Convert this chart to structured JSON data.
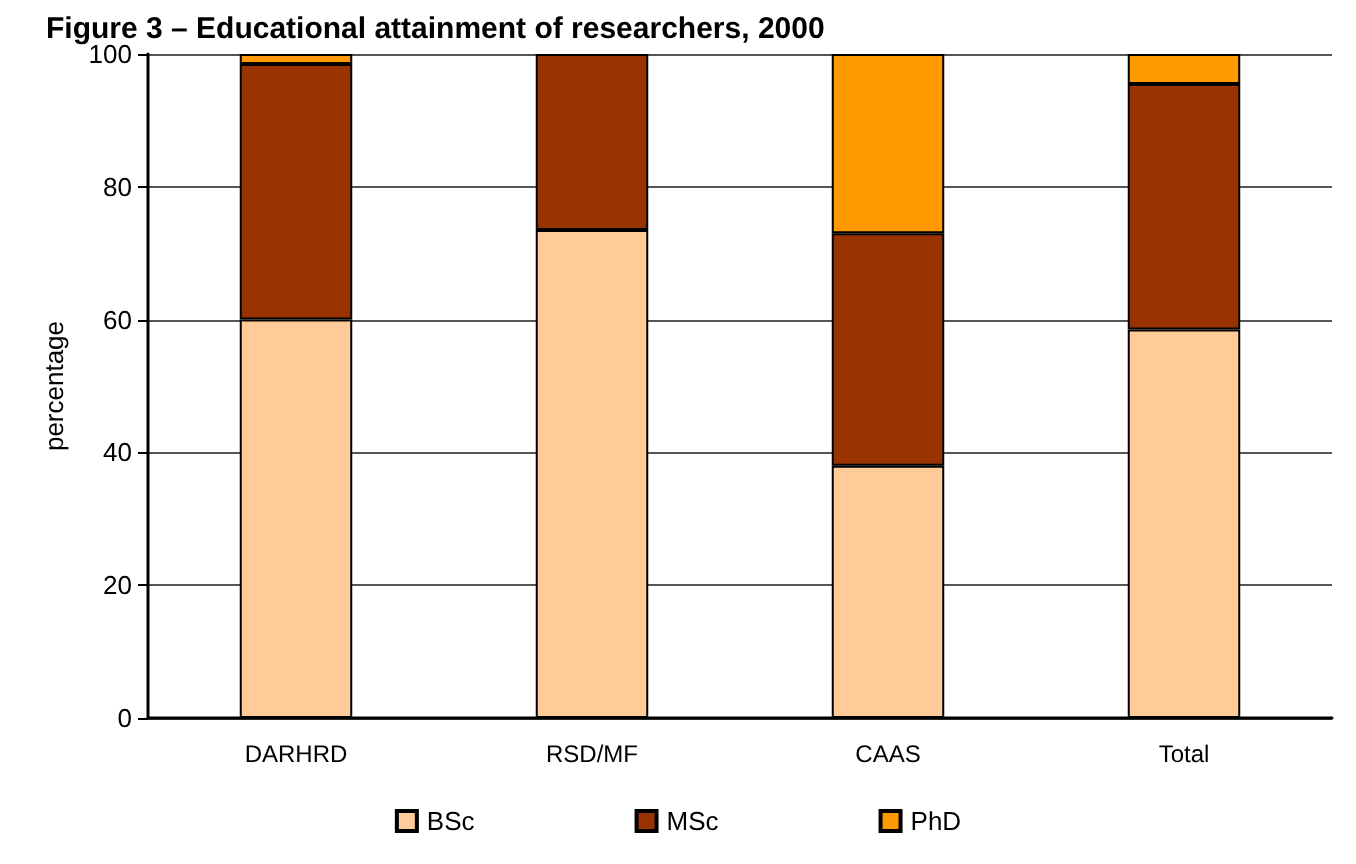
{
  "chart_data": {
    "type": "bar",
    "title": "Figure 3 – Educational attainment of researchers, 2000",
    "ylabel": "percentage",
    "categories": [
      "DARHRD",
      "RSD/MF",
      "CAAS",
      "Total"
    ],
    "series": [
      {
        "name": "BSc",
        "color": "#ffcc99",
        "values": [
          60,
          73.5,
          38,
          58.5
        ]
      },
      {
        "name": "MSc",
        "color": "#993300",
        "values": [
          38.5,
          26.5,
          35,
          37
        ]
      },
      {
        "name": "PhD",
        "color": "#ff9900",
        "values": [
          1.5,
          null,
          27,
          4.5
        ]
      }
    ],
    "stacked": true,
    "ylim": [
      0,
      100
    ],
    "yticks": [
      0,
      20,
      40,
      60,
      80,
      100
    ],
    "grid": true,
    "legend": "bottom"
  }
}
